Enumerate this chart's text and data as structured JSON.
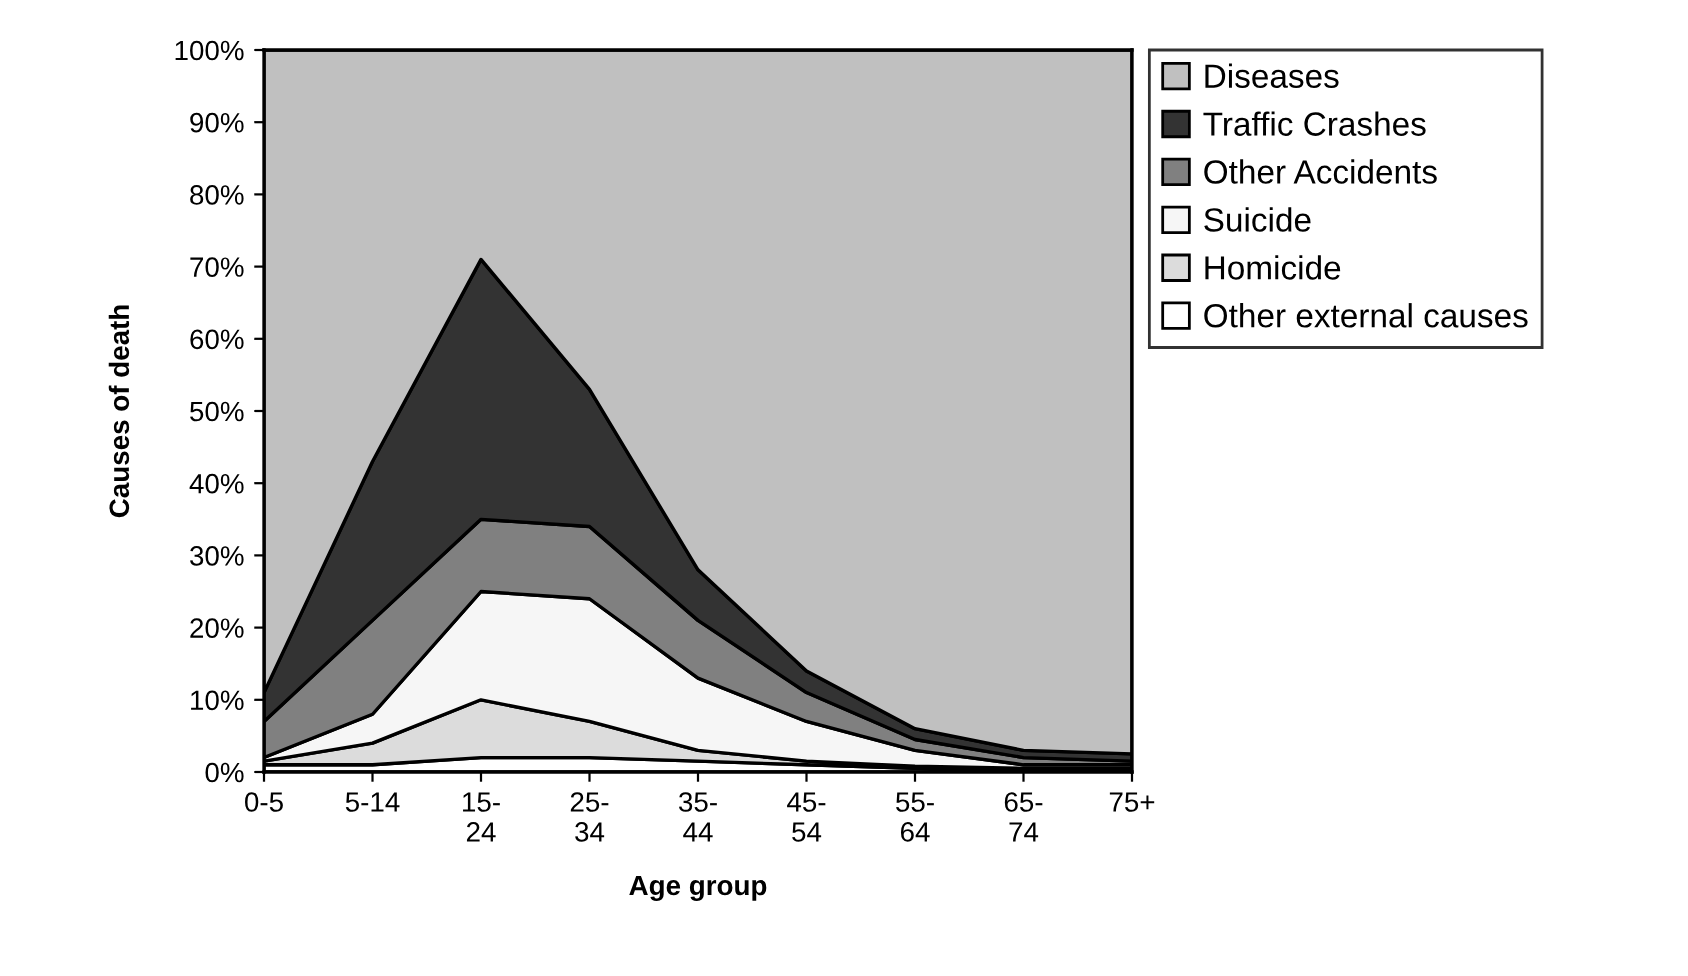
{
  "chart_data": {
    "type": "area",
    "stacked": true,
    "xlabel": "Age group",
    "ylabel": "Causes of death",
    "categories": [
      "0-5",
      "5-14",
      "15-24",
      "25-34",
      "35-44",
      "45-54",
      "55-64",
      "65-74",
      "75+"
    ],
    "series": [
      {
        "name": "Other external causes",
        "color": "#ffffff",
        "values": [
          1,
          1,
          2,
          2,
          1.5,
          1,
          0.5,
          0.3,
          0.3
        ]
      },
      {
        "name": "Homicide",
        "color": "#dcdcdc",
        "values": [
          0.5,
          3,
          8,
          5,
          1.5,
          0.5,
          0.3,
          0.2,
          0.2
        ]
      },
      {
        "name": "Suicide",
        "color": "#f6f6f6",
        "values": [
          0.5,
          4,
          15,
          17,
          10,
          5.5,
          2.2,
          0.5,
          0.5
        ]
      },
      {
        "name": "Other Accidents",
        "color": "#808080",
        "values": [
          5,
          13,
          10,
          10,
          8,
          4,
          1.5,
          1,
          0.5
        ]
      },
      {
        "name": "Traffic Crashes",
        "color": "#333333",
        "values": [
          4,
          22,
          36,
          19,
          7,
          3,
          1.5,
          1,
          1
        ]
      },
      {
        "name": "Diseases",
        "color": "#c0c0c0",
        "values": [
          89,
          57,
          29,
          47,
          72,
          86,
          94,
          97,
          97.5
        ]
      }
    ],
    "ylim": [
      0,
      100
    ],
    "yticks": [
      {
        "value": 0,
        "label": "0%"
      },
      {
        "value": 10,
        "label": "10%"
      },
      {
        "value": 20,
        "label": "20%"
      },
      {
        "value": 30,
        "label": "30%"
      },
      {
        "value": 40,
        "label": "40%"
      },
      {
        "value": 50,
        "label": "50%"
      },
      {
        "value": 60,
        "label": "60%"
      },
      {
        "value": 70,
        "label": "70%"
      },
      {
        "value": 80,
        "label": "80%"
      },
      {
        "value": 90,
        "label": "90%"
      },
      {
        "value": 100,
        "label": "100%"
      }
    ],
    "grid": false,
    "legend": "right"
  }
}
